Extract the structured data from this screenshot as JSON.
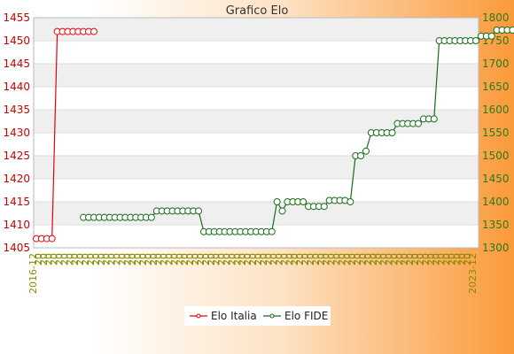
{
  "chart_data": {
    "type": "line",
    "title": "Grafico Elo",
    "left_axis": {
      "min": 1405,
      "max": 1455,
      "step": 5,
      "ticks": [
        "1405",
        "1410",
        "1415",
        "1420",
        "1425",
        "1430",
        "1435",
        "1440",
        "1445",
        "1450",
        "1455"
      ]
    },
    "right_axis": {
      "min": 1300,
      "max": 1800,
      "step": 50,
      "ticks": [
        "1300",
        "1350",
        "1400",
        "1450",
        "1500",
        "1550",
        "1600",
        "1650",
        "1700",
        "1750",
        "1800"
      ]
    },
    "x_labels": [
      "2016-12",
      "",
      "",
      "",
      "",
      "",
      "",
      "",
      "",
      "",
      "",
      "",
      "",
      "",
      "",
      "",
      "",
      "",
      "",
      "",
      "",
      "",
      "",
      "",
      "",
      "",
      "",
      "",
      "",
      "",
      "",
      "",
      "",
      "",
      "",
      "",
      "",
      "",
      "",
      "",
      "",
      "",
      "",
      "",
      "",
      "",
      "",
      "",
      "",
      "",
      "",
      "",
      "",
      "",
      "",
      "",
      "",
      "",
      "",
      "",
      "",
      "",
      "",
      "",
      "",
      "",
      "",
      "",
      "",
      "",
      "",
      "",
      "",
      "",
      "",
      "",
      "",
      "",
      "",
      "",
      "",
      "",
      "",
      "",
      "",
      "",
      "",
      "",
      "",
      "",
      "",
      "",
      "",
      "",
      "",
      "",
      "",
      "",
      "",
      "",
      "",
      "",
      "2023-12"
    ],
    "grid": "horizontal bands",
    "legend_position": "bottom",
    "series": [
      {
        "name": "Elo Italia",
        "color": "#e8000b",
        "axis": "left",
        "values": [
          1407,
          1407,
          1407,
          1407,
          1452,
          1452,
          1452,
          1452,
          1452,
          1452,
          1452,
          1452,
          1452
        ]
      },
      {
        "name": "Elo FIDE",
        "color": "#1a6d1a",
        "axis": "right",
        "start_index": 13,
        "values": [
          1366,
          1366,
          1366,
          1366,
          1366,
          1366,
          1366,
          1366,
          1366,
          1366,
          1366,
          1366,
          1366,
          1366,
          1366,
          1366,
          1366,
          1366,
          1366,
          1366,
          1366,
          1366,
          1366,
          1366,
          1366,
          1366,
          1366,
          1366,
          1366,
          1366,
          1366,
          1366,
          1366,
          1366,
          1366,
          1366,
          1366,
          1366,
          1366,
          1366,
          1366,
          1366,
          1366,
          1366,
          1366,
          1366,
          1366,
          1366,
          1366,
          1366,
          1366,
          1366,
          1366,
          1366,
          1366,
          1366,
          1366,
          1366,
          1366,
          1366,
          1366,
          1366,
          1366,
          1366,
          1366,
          1366,
          1366,
          1366,
          1366,
          1366,
          1366,
          1366,
          1366,
          1366,
          1366,
          1366,
          1366,
          1366,
          1366,
          1366,
          1366,
          1366,
          1366,
          1366,
          1366,
          1366,
          1366,
          1366,
          1366,
          1366,
          1366,
          1366,
          1366,
          1366,
          1366,
          1366,
          1366,
          1366,
          1366,
          1366,
          1366,
          1366,
          1366,
          1366,
          1366,
          1366,
          1366,
          1366,
          1366,
          1366,
          1366,
          1366,
          1366,
          1366,
          1366,
          1366,
          1366,
          1366,
          1366,
          1366,
          1366,
          1366,
          1366,
          1366,
          1366,
          1366,
          1366,
          1366,
          1366,
          1366,
          1366,
          1366,
          1366,
          1366,
          1366,
          1366,
          1366,
          1366,
          1366,
          1366,
          1366,
          1366,
          1366,
          1366,
          1366,
          1366,
          1366,
          1366,
          1366,
          1366,
          1366,
          1366,
          1366,
          1366,
          1366,
          1366,
          1366,
          1366,
          1366,
          1366,
          1366,
          1366,
          1366,
          1366,
          1366,
          1366,
          1366,
          1366,
          1366,
          1366,
          1366,
          1366,
          1366,
          1366,
          1366,
          1366
        ]
      }
    ]
  }
}
